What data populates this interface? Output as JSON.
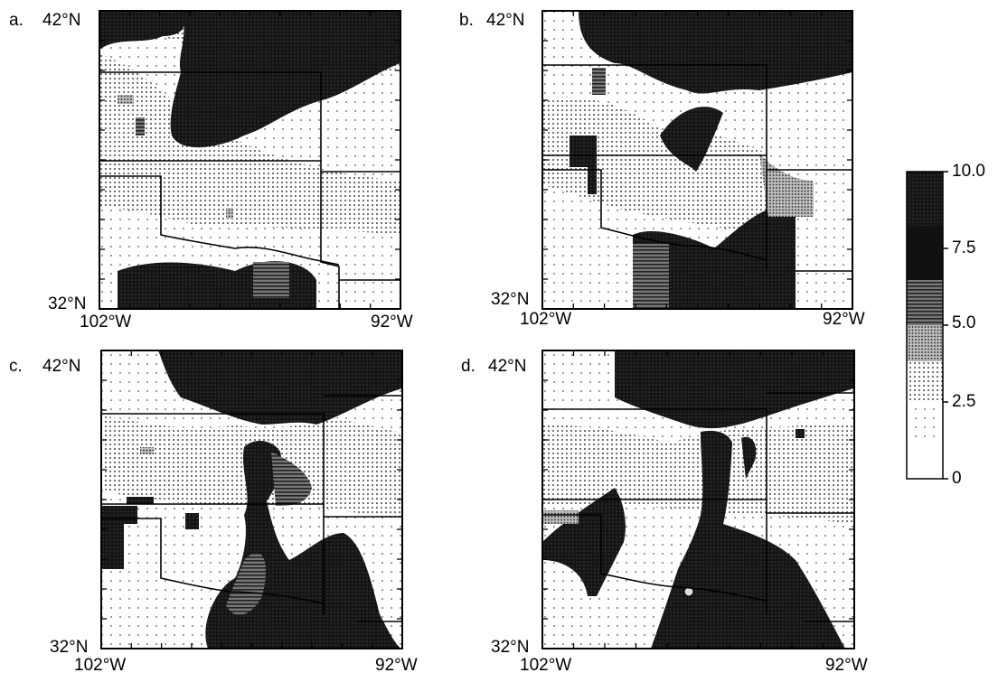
{
  "panels": [
    {
      "letter": "a.",
      "lat_top": "42°N",
      "lat_bottom": "32°N",
      "lon_left": "102°W",
      "lon_right": "92°W"
    },
    {
      "letter": "b.",
      "lat_top": "42°N",
      "lat_bottom": "32°N",
      "lon_left": "102°W",
      "lon_right": "92°W"
    },
    {
      "letter": "c.",
      "lat_top": "42°N",
      "lat_bottom": "32°N",
      "lon_left": "102°W",
      "lon_right": "92°W"
    },
    {
      "letter": "d.",
      "lat_top": "42°N",
      "lat_bottom": "32°N",
      "lon_left": "102°W",
      "lon_right": "92°W"
    }
  ],
  "colorbar": {
    "tick_labels": [
      "10.0",
      "7.5",
      "5.0",
      "2.5",
      "0"
    ],
    "levels": [
      0,
      2.5,
      5.0,
      7.5,
      10.0
    ]
  },
  "colors": {
    "dark": "#1a1a1a",
    "medium": "#8c8c8c",
    "light": "#cfcfcf",
    "paper": "#ffffff"
  }
}
